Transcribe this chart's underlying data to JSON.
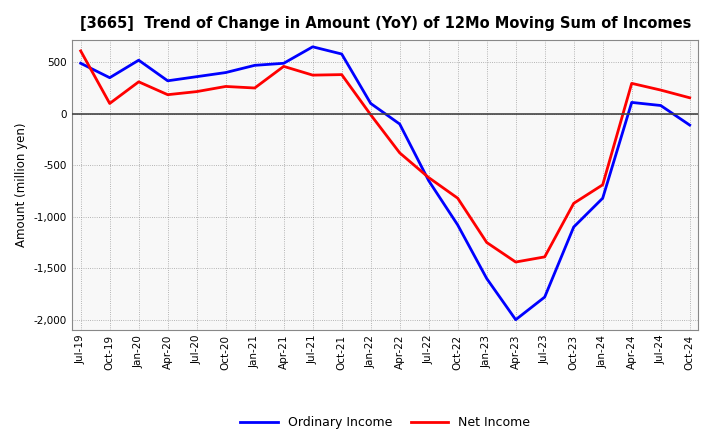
{
  "title": "[3665]  Trend of Change in Amount (YoY) of 12Mo Moving Sum of Incomes",
  "ylabel": "Amount (million yen)",
  "x_labels": [
    "Jul-19",
    "Oct-19",
    "Jan-20",
    "Apr-20",
    "Jul-20",
    "Oct-20",
    "Jan-21",
    "Apr-21",
    "Jul-21",
    "Oct-21",
    "Jan-22",
    "Apr-22",
    "Jul-22",
    "Oct-22",
    "Jan-23",
    "Apr-23",
    "Jul-23",
    "Oct-23",
    "Jan-24",
    "Apr-24",
    "Jul-24",
    "Oct-24"
  ],
  "ordinary_income": [
    490,
    350,
    520,
    320,
    360,
    400,
    470,
    490,
    650,
    580,
    100,
    -100,
    -650,
    -1080,
    -1600,
    -2000,
    -1780,
    -1100,
    -820,
    110,
    80,
    -110
  ],
  "net_income": [
    610,
    100,
    310,
    185,
    215,
    265,
    250,
    460,
    375,
    380,
    -10,
    -380,
    -620,
    -820,
    -1250,
    -1440,
    -1390,
    -870,
    -690,
    295,
    230,
    155
  ],
  "ylim": [
    -2100,
    720
  ],
  "yticks": [
    -2000,
    -1500,
    -1000,
    -500,
    0,
    500
  ],
  "ordinary_color": "#0000FF",
  "net_color": "#FF0000",
  "line_width": 2.0,
  "background_color": "#FFFFFF",
  "grid_color": "#888888",
  "legend_labels": [
    "Ordinary Income",
    "Net Income"
  ]
}
